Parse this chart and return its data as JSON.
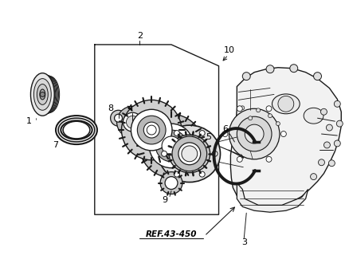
{
  "bg_color": "#ffffff",
  "line_color": "#1a1a1a",
  "figsize": [
    4.33,
    3.45
  ],
  "dpi": 100,
  "ref_label": "REF.43-450"
}
